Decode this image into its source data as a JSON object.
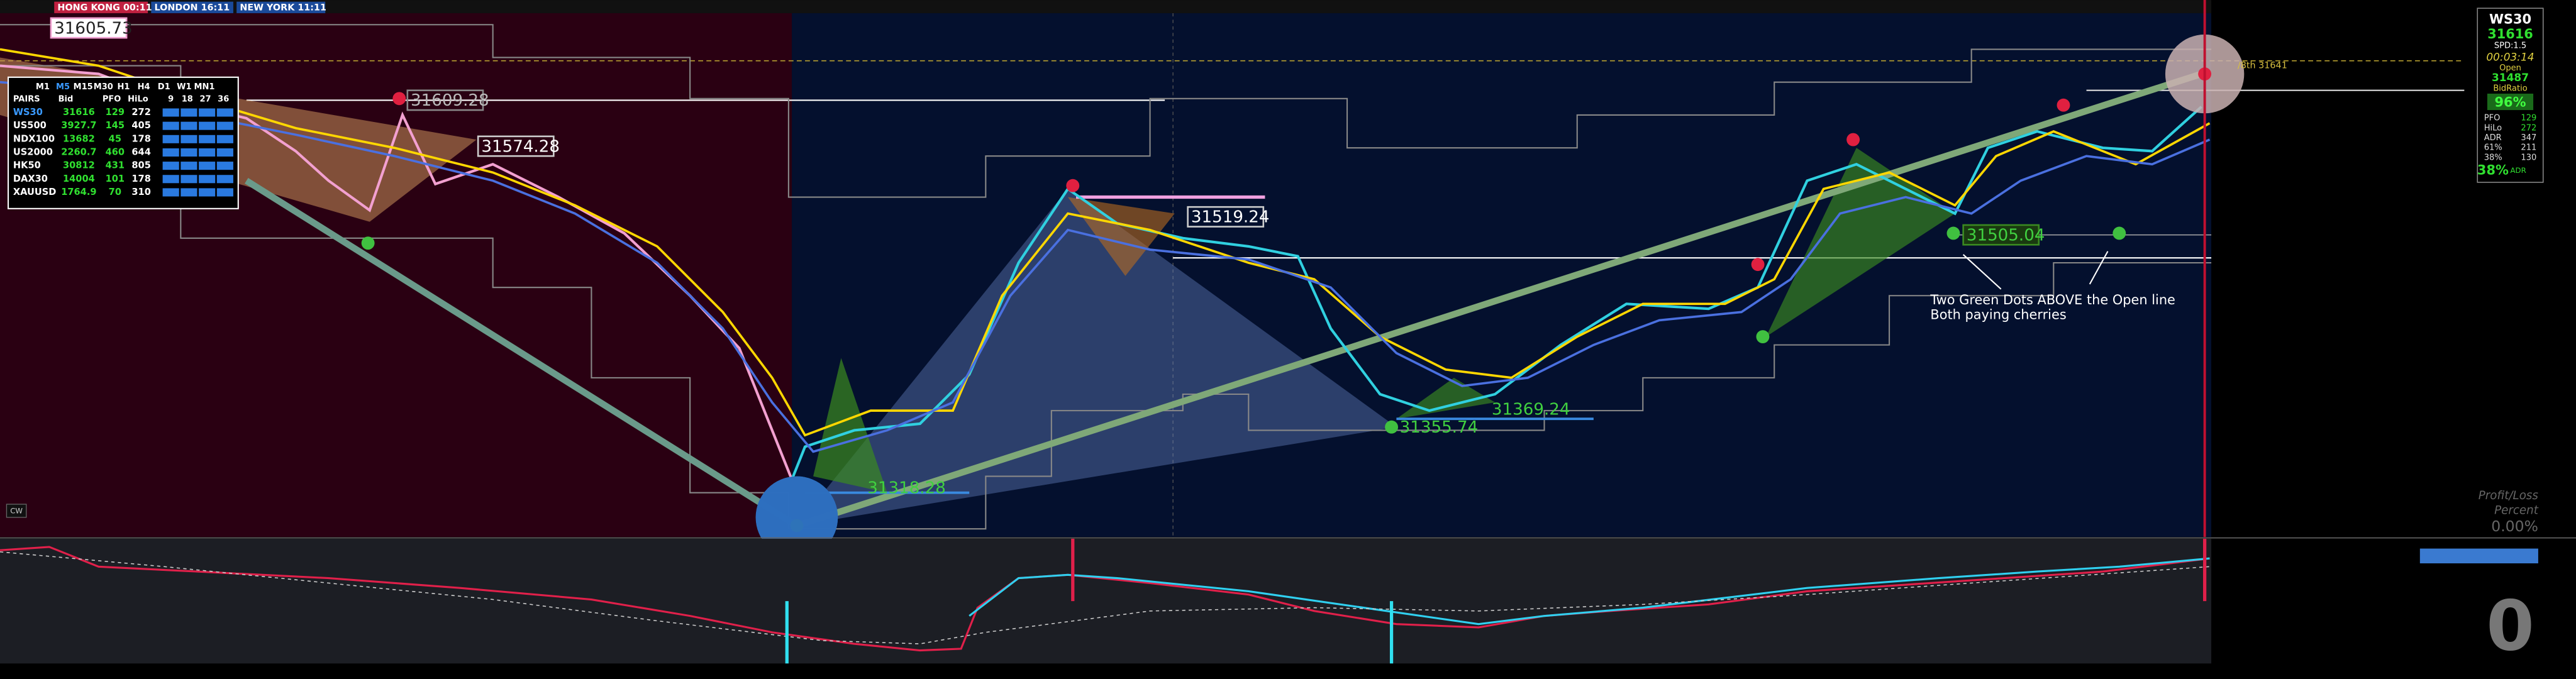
{
  "sessions": [
    "HONG KONG 00:11",
    "LONDON 16:11",
    "NEW YORK 11:11"
  ],
  "price_labels": [
    "31605.73",
    "31609.28",
    "31574.28",
    "31519.24",
    "31505.04",
    "31369.24",
    "31355.74",
    "31318.28"
  ],
  "level_label": "/8th  31641",
  "annotation": [
    "Two Green Dots ABOVE the Open line",
    "Both paying cherries"
  ],
  "dashboard": {
    "timeframes": [
      "M1",
      "M5",
      "M15",
      "M30",
      "H1",
      "H4",
      "D1",
      "W1",
      "MN1"
    ],
    "columns": [
      "PAIRS",
      "Bid",
      "PFO",
      "HiLo",
      "9",
      "18",
      "27",
      "36"
    ],
    "rows": [
      [
        "WS30",
        "31616",
        "129",
        "272"
      ],
      [
        "US500",
        "3927.7",
        "145",
        "405"
      ],
      [
        "NDX100",
        "13682",
        "45",
        "178"
      ],
      [
        "US2000",
        "2260.7",
        "460",
        "644"
      ],
      [
        "HK50",
        "30812",
        "431",
        "805"
      ],
      [
        "DAX30",
        "14004",
        "101",
        "178"
      ],
      [
        "XAUUSD",
        "1764.9",
        "70",
        "310"
      ]
    ]
  },
  "info_panel": {
    "symbol": "WS30",
    "bid": "31616",
    "spread": "SPD:1.5",
    "timer": "00:03:14",
    "open_label": "Open",
    "open": "31487",
    "bid_ratio_label": "BidRatio",
    "bid_ratio": "96%",
    "stats": [
      [
        "PFO",
        "129"
      ],
      [
        "HiLo",
        "272"
      ],
      [
        "ADR",
        "347"
      ],
      [
        "61%",
        "211"
      ],
      [
        "38%",
        "130"
      ]
    ],
    "footer": [
      "38%",
      "ADR"
    ]
  },
  "profit_loss": {
    "title": "Profit/Loss",
    "subtitle": "Percent",
    "value": "0.00%"
  },
  "counter": "0",
  "button": "CW"
}
